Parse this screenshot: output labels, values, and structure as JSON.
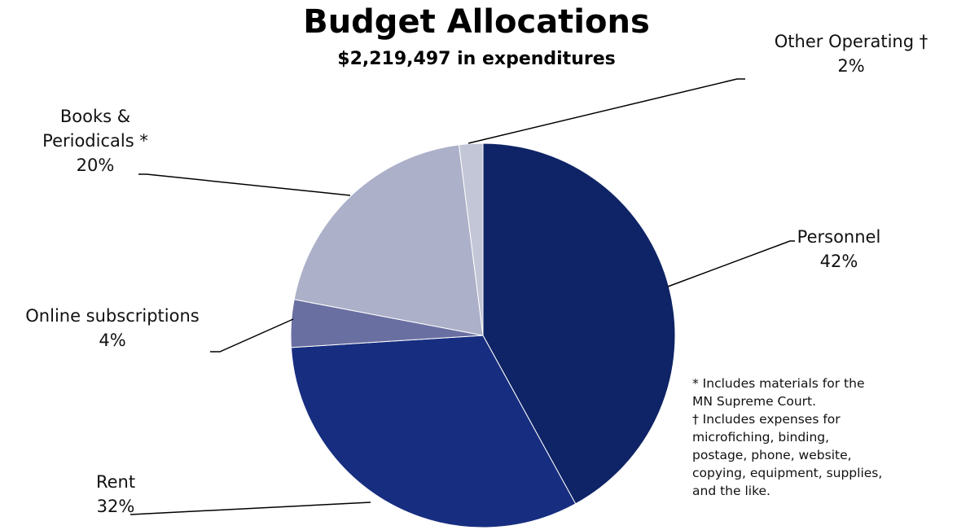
{
  "chart_data": {
    "type": "pie",
    "title": "Budget Allocations",
    "subtitle": "$2,219,497 in expenditures",
    "categories": [
      "Personnel",
      "Rent",
      "Online subscriptions",
      "Books & Periodicals *",
      "Other Operating †"
    ],
    "values": [
      42,
      32,
      4,
      20,
      2
    ],
    "value_labels": [
      "42%",
      "32%",
      "4%",
      "20%",
      "2%"
    ],
    "colors": [
      "#0f2466",
      "#172e80",
      "#6a6fa2",
      "#acb0c8",
      "#c3c6d6"
    ],
    "notes": [
      "* Includes materials for the MN Supreme Court.",
      "† Includes expenses for microfiching, binding, postage, phone, website, copying, equipment, supplies, and the like."
    ]
  }
}
